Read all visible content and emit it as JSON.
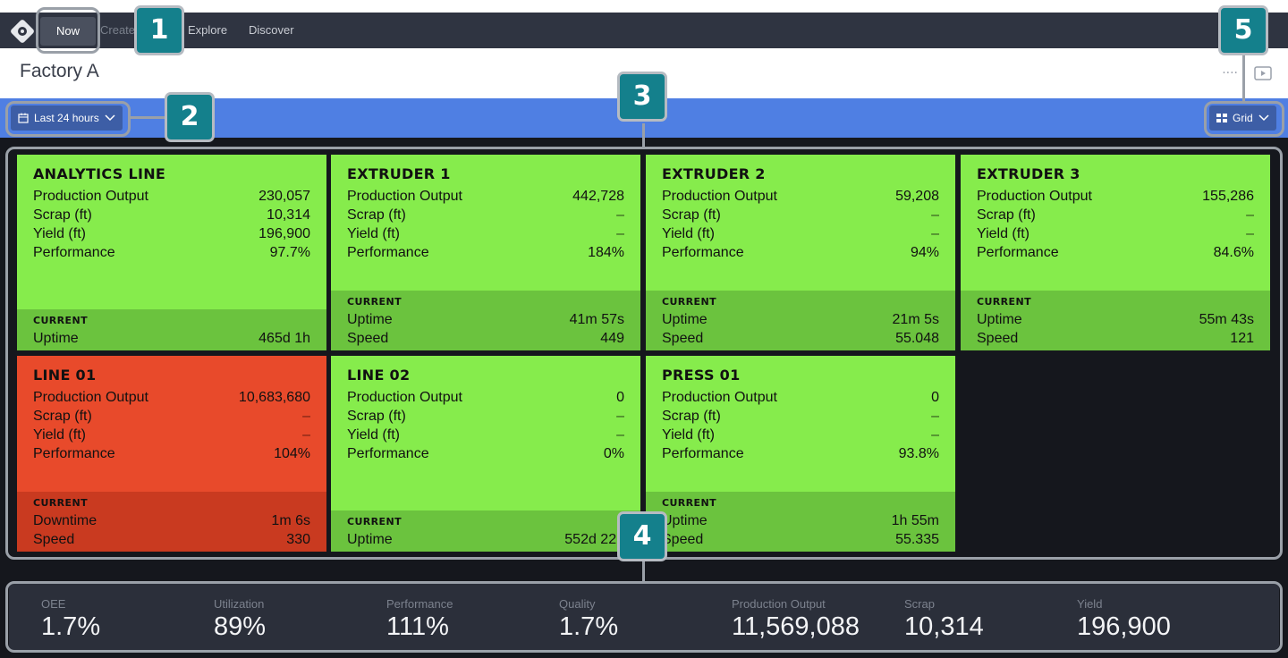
{
  "nav": {
    "items": [
      "Now",
      "Create",
      "Explore",
      "Discover"
    ]
  },
  "page": {
    "title": "Factory A",
    "more": "····",
    "play_icon": "play-icon"
  },
  "toolbar": {
    "date_range": "Last 24 hours",
    "view_mode": "Grid",
    "accent": "#4f7fe3"
  },
  "cards": [
    {
      "name": "ANALYTICS LINE",
      "status": "green",
      "metrics": [
        [
          "Production Output",
          "230,057"
        ],
        [
          "Scrap (ft)",
          "10,314"
        ],
        [
          "Yield (ft)",
          "196,900"
        ],
        [
          "Performance",
          "97.7%"
        ]
      ],
      "current_label": "CURRENT",
      "current": [
        [
          "Uptime",
          "465d 1h"
        ]
      ]
    },
    {
      "name": "EXTRUDER 1",
      "status": "green",
      "metrics": [
        [
          "Production Output",
          "442,728"
        ],
        [
          "Scrap (ft)",
          "–"
        ],
        [
          "Yield (ft)",
          "–"
        ],
        [
          "Performance",
          "184%"
        ]
      ],
      "current_label": "CURRENT",
      "current": [
        [
          "Uptime",
          "41m 57s"
        ],
        [
          "Speed",
          "449"
        ]
      ]
    },
    {
      "name": "EXTRUDER 2",
      "status": "green",
      "metrics": [
        [
          "Production Output",
          "59,208"
        ],
        [
          "Scrap (ft)",
          "–"
        ],
        [
          "Yield (ft)",
          "–"
        ],
        [
          "Performance",
          "94%"
        ]
      ],
      "current_label": "CURRENT",
      "current": [
        [
          "Uptime",
          "21m 5s"
        ],
        [
          "Speed",
          "55.048"
        ]
      ]
    },
    {
      "name": "EXTRUDER 3",
      "status": "green",
      "metrics": [
        [
          "Production Output",
          "155,286"
        ],
        [
          "Scrap (ft)",
          "–"
        ],
        [
          "Yield (ft)",
          "–"
        ],
        [
          "Performance",
          "84.6%"
        ]
      ],
      "current_label": "CURRENT",
      "current": [
        [
          "Uptime",
          "55m 43s"
        ],
        [
          "Speed",
          "121"
        ]
      ]
    },
    {
      "name": "LINE 01",
      "status": "red",
      "metrics": [
        [
          "Production Output",
          "10,683,680"
        ],
        [
          "Scrap (ft)",
          "–"
        ],
        [
          "Yield (ft)",
          "–"
        ],
        [
          "Performance",
          "104%"
        ]
      ],
      "current_label": "CURRENT",
      "current": [
        [
          "Downtime",
          "1m 6s"
        ],
        [
          "Speed",
          "330"
        ]
      ]
    },
    {
      "name": "LINE 02",
      "status": "green",
      "metrics": [
        [
          "Production Output",
          "0"
        ],
        [
          "Scrap (ft)",
          "–"
        ],
        [
          "Yield (ft)",
          "–"
        ],
        [
          "Performance",
          "0%"
        ]
      ],
      "current_label": "CURRENT",
      "current": [
        [
          "Uptime",
          "552d 22h"
        ]
      ]
    },
    {
      "name": "PRESS 01",
      "status": "green",
      "metrics": [
        [
          "Production Output",
          "0"
        ],
        [
          "Scrap (ft)",
          "–"
        ],
        [
          "Yield (ft)",
          "–"
        ],
        [
          "Performance",
          "93.8%"
        ]
      ],
      "current_label": "CURRENT",
      "current": [
        [
          "Uptime",
          "1h 55m"
        ],
        [
          "Speed",
          "55.335"
        ]
      ]
    }
  ],
  "summary": [
    [
      "OEE",
      "1.7%"
    ],
    [
      "Utilization",
      "89%"
    ],
    [
      "Performance",
      "111%"
    ],
    [
      "Quality",
      "1.7%"
    ],
    [
      "Production Output",
      "11,569,088"
    ],
    [
      "Scrap",
      "10,314"
    ],
    [
      "Yield",
      "196,900"
    ]
  ],
  "callouts": [
    "1",
    "2",
    "3",
    "4",
    "5"
  ],
  "colors": {
    "good": "#86ec4c",
    "bad": "#e84a2b",
    "callout": "#14808c"
  }
}
